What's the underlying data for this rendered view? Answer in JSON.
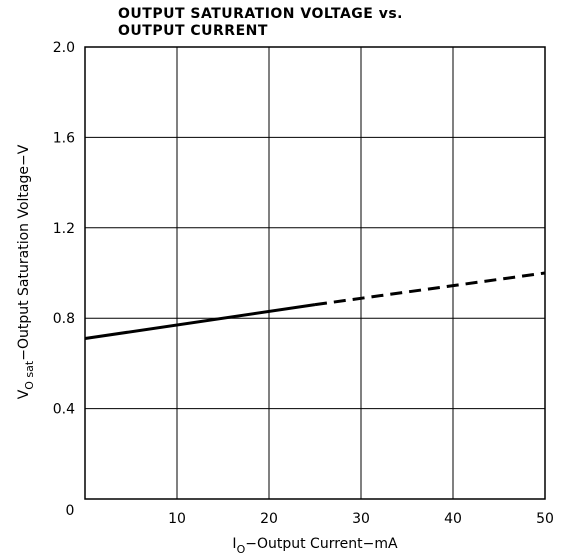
{
  "chart_data": {
    "type": "line",
    "title": [
      "OUTPUT SATURATION VOLTAGE vs.",
      "OUTPUT CURRENT"
    ],
    "xlabel": {
      "main": "I",
      "sub": "O",
      "rest": "−Output Current−mA"
    },
    "ylabel": {
      "main": "V",
      "sub": "O sat",
      "rest": "−Output Saturation Voltage−V"
    },
    "x": [
      0,
      25,
      50
    ],
    "series": [
      {
        "color": "#000000",
        "dash": false,
        "values": [
          0.71,
          0.86,
          null
        ]
      },
      {
        "color": "#000000",
        "dash": true,
        "values": [
          null,
          0.86,
          1.0
        ]
      }
    ],
    "xlim": [
      0,
      50
    ],
    "xticks": [
      0,
      10,
      20,
      30,
      40,
      50
    ],
    "ylim": [
      0,
      2
    ],
    "yticks": [
      0.4,
      0.8,
      1.2,
      1.6,
      {
        "value": 2,
        "label": "2.0"
      }
    ],
    "grid": true
  }
}
